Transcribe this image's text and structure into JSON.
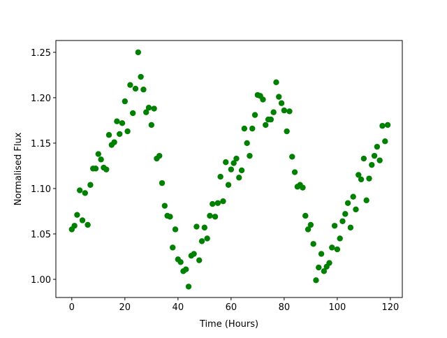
{
  "chart_data": {
    "type": "scatter",
    "x_label": "Time (Hours)",
    "y_label": "Normalised Flux",
    "color": "#008000",
    "xlim": [
      -6,
      124.5
    ],
    "ylim": [
      0.98,
      1.263
    ],
    "xticks": [
      0,
      20,
      40,
      60,
      80,
      100,
      120
    ],
    "yticks": [
      {
        "value": 1.0,
        "label": "1.00"
      },
      1.05,
      {
        "value": 1.1,
        "label": "1.10"
      },
      1.15,
      {
        "value": 1.2,
        "label": "1.20"
      },
      1.25
    ],
    "grid": false,
    "x": [
      0,
      1,
      2,
      3,
      4,
      5,
      6,
      7,
      8,
      9,
      10,
      11,
      12,
      13,
      14,
      15,
      16,
      17,
      18,
      19,
      20,
      21,
      22,
      23,
      24,
      25,
      26,
      27,
      28,
      29,
      30,
      31,
      32,
      33,
      34,
      35,
      36,
      37,
      38,
      39,
      40,
      41,
      42,
      43,
      44,
      45,
      46,
      47,
      48,
      49,
      50,
      51,
      52,
      53,
      54,
      55,
      56,
      57,
      58,
      59,
      60,
      61,
      62,
      63,
      64,
      65,
      66,
      67,
      68,
      69,
      70,
      71,
      72,
      73,
      74,
      75,
      76,
      77,
      78,
      79,
      80,
      81,
      82,
      83,
      84,
      85,
      86,
      87,
      88,
      89,
      90,
      91,
      92,
      93,
      94,
      95,
      96,
      97,
      98,
      99,
      100,
      101,
      102,
      103,
      104,
      105,
      106,
      107,
      108,
      109,
      110,
      111,
      112,
      113,
      114,
      115,
      116,
      117,
      118,
      119
    ],
    "values": [
      1.055,
      1.059,
      1.071,
      1.098,
      1.065,
      1.095,
      1.06,
      1.104,
      1.122,
      1.122,
      1.138,
      1.132,
      1.123,
      1.121,
      1.159,
      1.148,
      1.151,
      1.174,
      1.16,
      1.172,
      1.196,
      1.163,
      1.214,
      1.183,
      1.21,
      1.25,
      1.223,
      1.209,
      1.184,
      1.189,
      1.17,
      1.188,
      1.133,
      1.136,
      1.106,
      1.081,
      1.07,
      1.069,
      1.035,
      1.055,
      1.022,
      1.019,
      1.009,
      1.011,
      0.992,
      1.026,
      1.028,
      1.058,
      1.021,
      1.042,
      1.057,
      1.045,
      1.07,
      1.083,
      1.069,
      1.084,
      1.113,
      1.086,
      1.129,
      1.104,
      1.121,
      1.128,
      1.133,
      1.112,
      1.12,
      1.166,
      1.15,
      1.136,
      1.166,
      1.181,
      1.203,
      1.202,
      1.198,
      1.17,
      1.176,
      1.176,
      1.184,
      1.217,
      1.201,
      1.194,
      1.186,
      1.163,
      1.185,
      1.135,
      1.118,
      1.102,
      1.104,
      1.101,
      1.07,
      1.055,
      1.06,
      1.039,
      0.999,
      1.013,
      1.028,
      1.009,
      1.014,
      1.018,
      1.035,
      1.059,
      1.033,
      1.045,
      1.064,
      1.072,
      1.084,
      1.057,
      1.091,
      1.077,
      1.115,
      1.11,
      1.133,
      1.087,
      1.111,
      1.126,
      1.136,
      1.146,
      1.131,
      1.169,
      1.152,
      1.17
    ]
  }
}
